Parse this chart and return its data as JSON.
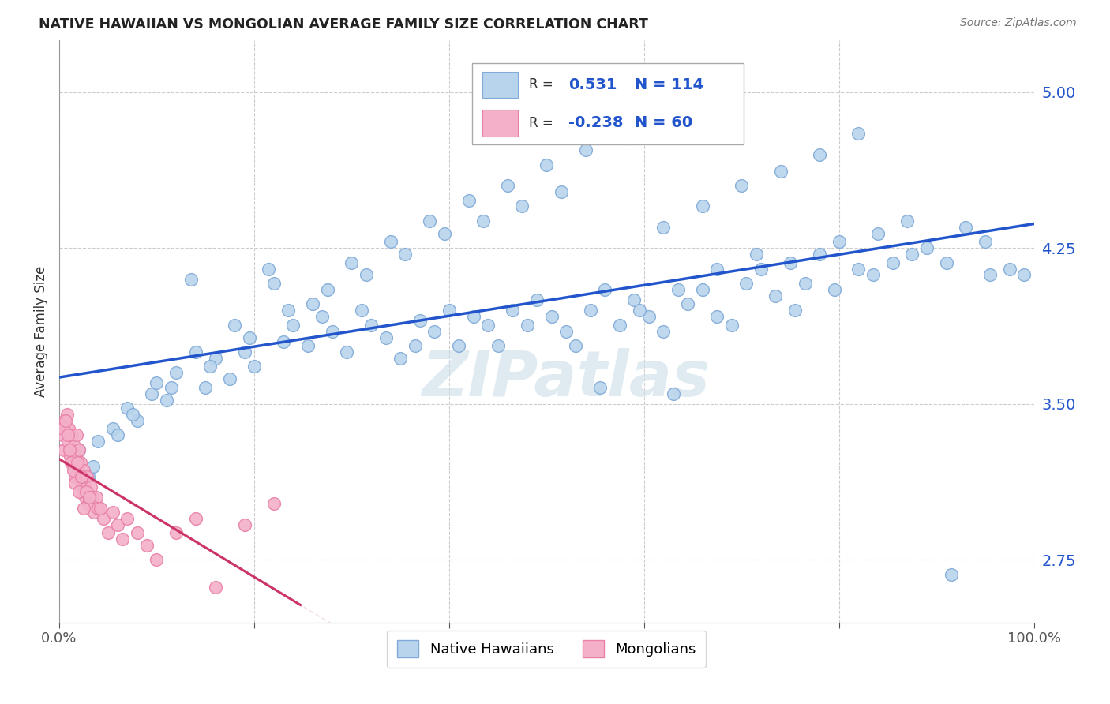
{
  "title": "NATIVE HAWAIIAN VS MONGOLIAN AVERAGE FAMILY SIZE CORRELATION CHART",
  "source": "Source: ZipAtlas.com",
  "ylabel": "Average Family Size",
  "yticks": [
    2.75,
    3.5,
    4.25,
    5.0
  ],
  "xmin": 0.0,
  "xmax": 100.0,
  "ymin": 2.45,
  "ymax": 5.25,
  "blue_R": 0.531,
  "blue_N": 114,
  "pink_R": -0.238,
  "pink_N": 60,
  "blue_color": "#b8d4ec",
  "pink_color": "#f4b0c8",
  "blue_edge": "#80aad8",
  "pink_edge": "#e880a8",
  "trend_blue": "#2255cc",
  "trend_pink": "#cc3366",
  "trend_pink_ext": "#e8c0d0",
  "watermark": "ZIPatlas",
  "watermark_color": "#ccdde8",
  "legend_border": "#aaaaaa",
  "title_color": "#222222",
  "source_color": "#777777",
  "ylabel_color": "#333333",
  "xtick_color": "#555555",
  "ytick_color": "#2255cc",
  "grid_color": "#cccccc",
  "blue_x": [
    2.0,
    3.0,
    4.0,
    5.5,
    7.0,
    8.0,
    9.5,
    11.0,
    12.0,
    13.5,
    15.0,
    16.0,
    17.5,
    19.0,
    20.0,
    21.5,
    23.0,
    24.0,
    25.5,
    27.0,
    28.0,
    29.5,
    31.0,
    32.0,
    33.5,
    35.0,
    36.5,
    37.0,
    38.5,
    40.0,
    41.0,
    42.5,
    44.0,
    45.0,
    46.5,
    48.0,
    49.0,
    50.5,
    52.0,
    53.0,
    54.5,
    56.0,
    57.5,
    59.0,
    60.5,
    62.0,
    63.0,
    64.5,
    66.0,
    67.5,
    69.0,
    70.5,
    72.0,
    73.5,
    75.0,
    76.5,
    78.0,
    80.0,
    82.0,
    84.0,
    85.5,
    87.0,
    89.0,
    91.0,
    93.0,
    95.0,
    97.5,
    99.0,
    6.0,
    10.0,
    14.0,
    18.0,
    22.0,
    26.0,
    30.0,
    34.0,
    38.0,
    42.0,
    46.0,
    50.0,
    54.0,
    58.0,
    62.0,
    66.0,
    70.0,
    74.0,
    78.0,
    82.0,
    3.5,
    7.5,
    11.5,
    15.5,
    19.5,
    23.5,
    27.5,
    31.5,
    35.5,
    39.5,
    43.5,
    47.5,
    51.5,
    55.5,
    59.5,
    63.5,
    67.5,
    71.5,
    75.5,
    79.5,
    83.5,
    87.5,
    91.5,
    95.5
  ],
  "blue_y": [
    3.28,
    3.15,
    3.32,
    3.38,
    3.48,
    3.42,
    3.55,
    3.52,
    3.65,
    4.1,
    3.58,
    3.72,
    3.62,
    3.75,
    3.68,
    4.15,
    3.8,
    3.88,
    3.78,
    3.92,
    3.85,
    3.75,
    3.95,
    3.88,
    3.82,
    3.72,
    3.78,
    3.9,
    3.85,
    3.95,
    3.78,
    3.92,
    3.88,
    3.78,
    3.95,
    3.88,
    4.0,
    3.92,
    3.85,
    3.78,
    3.95,
    4.05,
    3.88,
    4.0,
    3.92,
    3.85,
    3.55,
    3.98,
    4.05,
    3.92,
    3.88,
    4.08,
    4.15,
    4.02,
    4.18,
    4.08,
    4.22,
    4.28,
    4.15,
    4.32,
    4.18,
    4.38,
    4.25,
    4.18,
    4.35,
    4.28,
    4.15,
    4.12,
    3.35,
    3.6,
    3.75,
    3.88,
    4.08,
    3.98,
    4.18,
    4.28,
    4.38,
    4.48,
    4.55,
    4.65,
    4.72,
    4.78,
    4.35,
    4.45,
    4.55,
    4.62,
    4.7,
    4.8,
    3.2,
    3.45,
    3.58,
    3.68,
    3.82,
    3.95,
    4.05,
    4.12,
    4.22,
    4.32,
    4.38,
    4.45,
    4.52,
    3.58,
    3.95,
    4.05,
    4.15,
    4.22,
    3.95,
    4.05,
    4.12,
    4.22,
    2.68,
    4.12
  ],
  "pink_x": [
    0.3,
    0.5,
    0.6,
    0.7,
    0.8,
    0.9,
    1.0,
    1.1,
    1.2,
    1.3,
    1.4,
    1.5,
    1.6,
    1.7,
    1.8,
    1.9,
    2.0,
    2.1,
    2.2,
    2.3,
    2.4,
    2.5,
    2.6,
    2.7,
    2.8,
    2.9,
    3.0,
    3.2,
    3.4,
    3.6,
    3.8,
    4.0,
    4.5,
    5.0,
    5.5,
    6.0,
    6.5,
    7.0,
    8.0,
    9.0,
    10.0,
    12.0,
    14.0,
    16.0,
    19.0,
    22.0,
    0.4,
    0.65,
    0.85,
    1.05,
    1.25,
    1.45,
    1.65,
    1.85,
    2.05,
    2.25,
    2.55,
    2.75,
    3.1,
    4.2
  ],
  "pink_y": [
    3.35,
    3.28,
    3.42,
    3.38,
    3.45,
    3.32,
    3.38,
    3.25,
    3.28,
    3.35,
    3.22,
    3.3,
    3.15,
    3.25,
    3.35,
    3.2,
    3.28,
    3.15,
    3.22,
    3.12,
    3.08,
    3.18,
    3.12,
    3.05,
    3.15,
    3.08,
    3.02,
    3.1,
    3.05,
    2.98,
    3.05,
    3.0,
    2.95,
    2.88,
    2.98,
    2.92,
    2.85,
    2.95,
    2.88,
    2.82,
    2.75,
    2.88,
    2.95,
    2.62,
    2.92,
    3.02,
    3.38,
    3.42,
    3.35,
    3.28,
    3.22,
    3.18,
    3.12,
    3.22,
    3.08,
    3.15,
    3.0,
    3.08,
    3.05,
    3.0
  ]
}
